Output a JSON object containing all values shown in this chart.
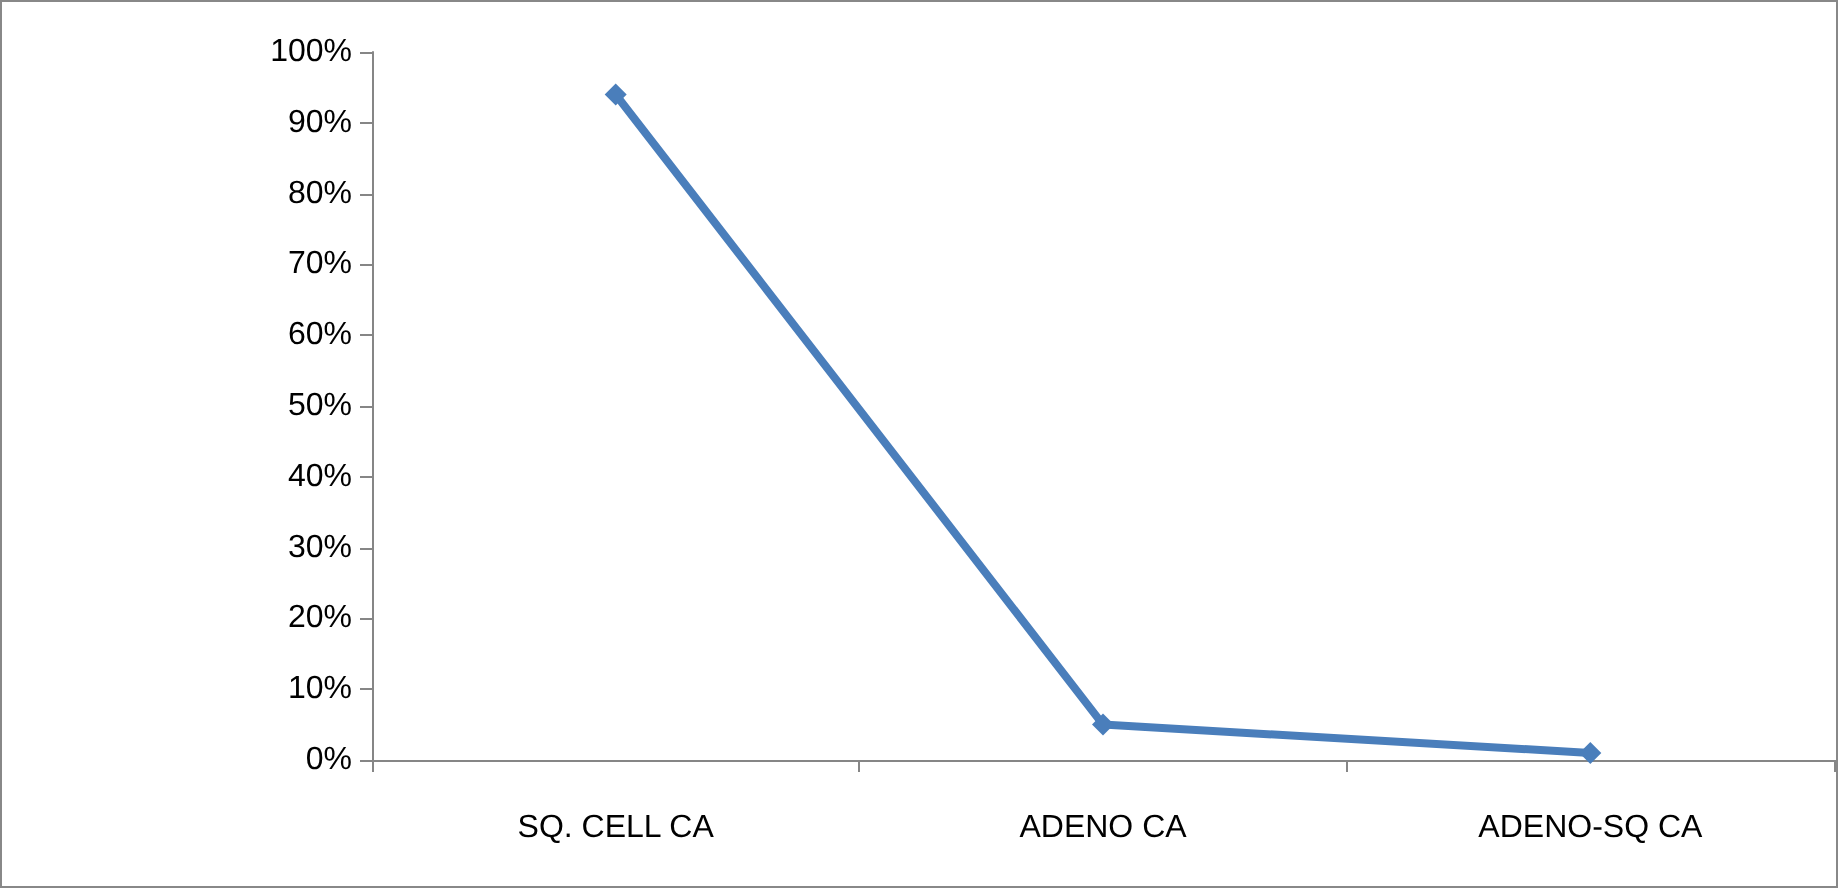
{
  "chart_data": {
    "type": "line",
    "categories": [
      "SQ. CELL CA",
      "ADENO CA",
      "ADENO-SQ CA"
    ],
    "series": [
      {
        "color": "#4a7ebb",
        "values": [
          94,
          5,
          1
        ]
      }
    ],
    "ylim": [
      0,
      100
    ],
    "yticks": [
      {
        "value": 0,
        "label": "0%"
      },
      {
        "value": 10,
        "label": "10%"
      },
      {
        "value": 20,
        "label": "20%"
      },
      {
        "value": 30,
        "label": "30%"
      },
      {
        "value": 40,
        "label": "40%"
      },
      {
        "value": 50,
        "label": "50%"
      },
      {
        "value": 60,
        "label": "60%"
      },
      {
        "value": 70,
        "label": "70%"
      },
      {
        "value": 80,
        "label": "80%"
      },
      {
        "value": 90,
        "label": "90%"
      },
      {
        "value": 100,
        "label": "100%"
      }
    ],
    "grid": false,
    "marker": "diamond",
    "line_style": "solid"
  }
}
